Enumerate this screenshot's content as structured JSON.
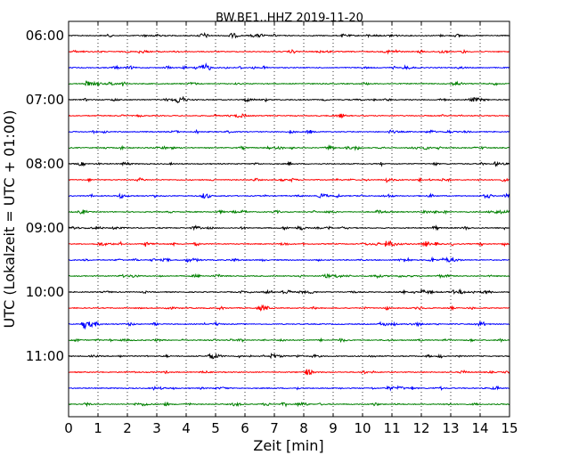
{
  "chart_data": {
    "type": "line",
    "title": "BW.BE1..HHZ 2019-11-20",
    "xlabel": "Zeit  [min]",
    "ylabel": "UTC (Lokalzeit = UTC + 01:00)",
    "xlim": [
      0,
      15
    ],
    "x_ticks": [
      0,
      1,
      2,
      3,
      4,
      5,
      6,
      7,
      8,
      9,
      10,
      11,
      12,
      13,
      14,
      15
    ],
    "x_tick_labels": [
      "0",
      "1",
      "2",
      "3",
      "4",
      "5",
      "6",
      "7",
      "8",
      "9",
      "10",
      "11",
      "12",
      "13",
      "14",
      "15"
    ],
    "y_tick_labels": [
      "06:00",
      "07:00",
      "08:00",
      "09:00",
      "10:00",
      "11:00"
    ],
    "grid": "vertical dotted",
    "colors": [
      "#000000",
      "#ff0000",
      "#0000ff",
      "#008000"
    ],
    "trace_interval_min": 15,
    "trace_count": 24,
    "events": [
      {
        "trace": 0,
        "x": 9.3,
        "amp": 0.4
      },
      {
        "trace": 1,
        "x": 2.4,
        "amp": 0.4
      },
      {
        "trace": 2,
        "x": 4.3,
        "amp": 0.55
      },
      {
        "trace": 2,
        "x": 11.4,
        "amp": 0.6
      },
      {
        "trace": 3,
        "x": 0.6,
        "amp": 0.5
      },
      {
        "trace": 4,
        "x": 3.7,
        "amp": 0.6
      },
      {
        "trace": 4,
        "x": 6.0,
        "amp": 0.6
      },
      {
        "trace": 6,
        "x": 10.9,
        "amp": 0.5
      },
      {
        "trace": 7,
        "x": 3.2,
        "amp": 0.4
      },
      {
        "trace": 8,
        "x": 14.5,
        "amp": 0.6
      },
      {
        "trace": 9,
        "x": 10.8,
        "amp": 0.6
      },
      {
        "trace": 10,
        "x": 1.7,
        "amp": 0.7
      },
      {
        "trace": 11,
        "x": 10.5,
        "amp": 0.5
      },
      {
        "trace": 12,
        "x": 1.5,
        "amp": 0.4
      },
      {
        "trace": 13,
        "x": 10.8,
        "amp": 1.6
      },
      {
        "trace": 13,
        "x": 2.6,
        "amp": 0.5
      },
      {
        "trace": 14,
        "x": 4.0,
        "amp": 0.6
      },
      {
        "trace": 15,
        "x": 10.5,
        "amp": 0.3
      },
      {
        "trace": 16,
        "x": 12.0,
        "amp": 0.6
      },
      {
        "trace": 16,
        "x": 13.3,
        "amp": 0.6
      },
      {
        "trace": 17,
        "x": 3.3,
        "amp": 0.5
      },
      {
        "trace": 18,
        "x": 0.5,
        "amp": 1.5
      },
      {
        "trace": 19,
        "x": 1.8,
        "amp": 0.3
      },
      {
        "trace": 20,
        "x": 4.8,
        "amp": 0.6
      },
      {
        "trace": 20,
        "x": 6.9,
        "amp": 0.9
      },
      {
        "trace": 21,
        "x": 8.1,
        "amp": 0.4
      },
      {
        "trace": 22,
        "x": 11.2,
        "amp": 0.6
      },
      {
        "trace": 23,
        "x": 2.5,
        "amp": 0.3
      }
    ]
  }
}
